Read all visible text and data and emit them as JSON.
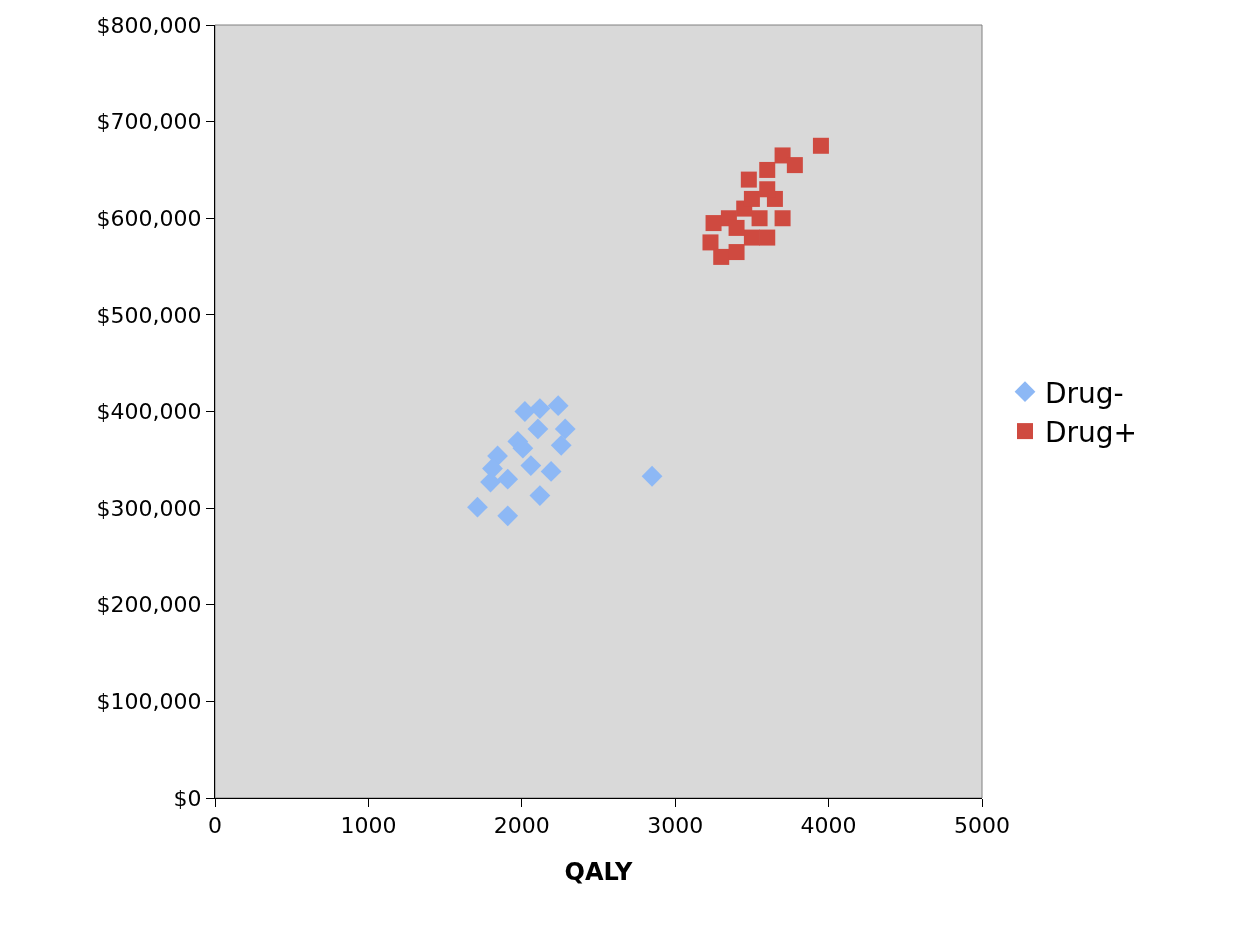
{
  "chart_data": {
    "type": "scatter",
    "xlabel": "QALY",
    "xlim": [
      0,
      5000
    ],
    "xticks": [
      0,
      1000,
      2000,
      3000,
      4000,
      5000
    ],
    "ylim": [
      0,
      800000
    ],
    "yticks": [
      {
        "value": 0,
        "label": "$0"
      },
      {
        "value": 100000,
        "label": "$100,000"
      },
      {
        "value": 200000,
        "label": "$200,000"
      },
      {
        "value": 300000,
        "label": "$300,000"
      },
      {
        "value": 400000,
        "label": "$400,000"
      },
      {
        "value": 500000,
        "label": "$500,000"
      },
      {
        "value": 600000,
        "label": "$600,000"
      },
      {
        "value": 700000,
        "label": "$700,000"
      },
      {
        "value": 800000,
        "label": "$800,000"
      }
    ],
    "grid": false,
    "legend": "right",
    "series": [
      {
        "name": "Drug-",
        "color": "#8db8f5",
        "marker": "diamond",
        "x": [
          1711,
          1796,
          1908,
          2118,
          2020,
          2118,
          2237,
          2283,
          2257,
          2191,
          1842,
          1974,
          2059,
          2849,
          1908,
          2007,
          2105,
          1809
        ],
        "values": [
          301000,
          327000,
          292000,
          313000,
          400000,
          403000,
          406000,
          382000,
          365000,
          338000,
          354000,
          369000,
          344000,
          333000,
          330000,
          362000,
          382000,
          341000
        ]
      },
      {
        "name": "Drug+",
        "color": "#cf4a40",
        "marker": "square",
        "x": [
          3950,
          3700,
          3780,
          3480,
          3600,
          3650,
          3700,
          3550,
          3450,
          3350,
          3250,
          3230,
          3300,
          3400,
          3500,
          3600,
          3500,
          3400,
          3600
        ],
        "values": [
          675000,
          665000,
          655000,
          640000,
          650000,
          620000,
          600000,
          600000,
          610000,
          600000,
          595000,
          575000,
          560000,
          565000,
          580000,
          580000,
          620000,
          590000,
          630000
        ]
      }
    ]
  }
}
